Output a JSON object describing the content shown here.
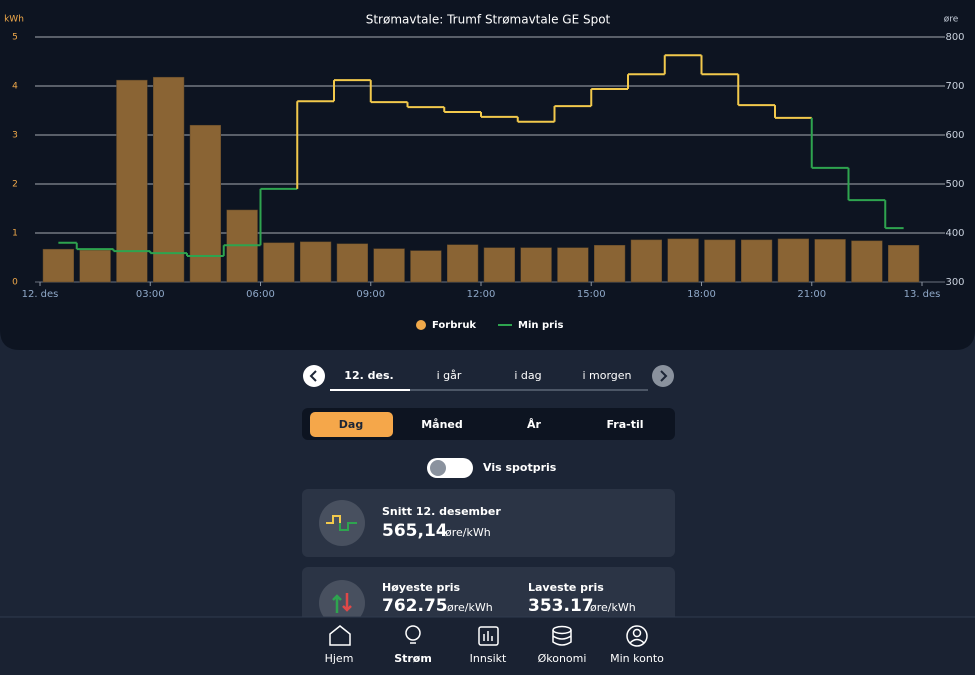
{
  "chart_data": {
    "type": "bar",
    "title": "Strømavtale: Trumf Strømavtale GE Spot",
    "ylabel": "kWh",
    "y2label": "øre",
    "x": [
      0,
      1,
      2,
      3,
      4,
      5,
      6,
      7,
      8,
      9,
      10,
      11,
      12,
      13,
      14,
      15,
      16,
      17,
      18,
      19,
      20,
      21,
      22,
      23
    ],
    "xlim": [
      0,
      24
    ],
    "xticks": [
      {
        "value": 0,
        "label": "12. des"
      },
      {
        "value": 3,
        "label": "03:00"
      },
      {
        "value": 6,
        "label": "06:00"
      },
      {
        "value": 9,
        "label": "09:00"
      },
      {
        "value": 12,
        "label": "12:00"
      },
      {
        "value": 15,
        "label": "15:00"
      },
      {
        "value": 18,
        "label": "18:00"
      },
      {
        "value": 21,
        "label": "21:00"
      },
      {
        "value": 24,
        "label": "13. des"
      }
    ],
    "ylim": [
      0,
      5
    ],
    "yticks": [
      0,
      1,
      2,
      3,
      4,
      5
    ],
    "y2lim": [
      300,
      800
    ],
    "y2ticks": [
      300,
      400,
      500,
      600,
      700,
      800
    ],
    "grid": true,
    "legend": "bottom",
    "series": [
      {
        "name": "Forbruk",
        "type": "bar",
        "color": "#f0a94a",
        "bar_color": "#8a6434",
        "values": [
          0.67,
          0.65,
          4.12,
          4.18,
          3.2,
          1.47,
          0.8,
          0.82,
          0.78,
          0.68,
          0.64,
          0.76,
          0.7,
          0.7,
          0.7,
          0.75,
          0.86,
          0.88,
          0.86,
          0.86,
          0.88,
          0.87,
          0.84,
          0.75
        ]
      },
      {
        "name": "Min pris",
        "type": "line",
        "step": true,
        "axis": "y2",
        "color": "#2ea44f",
        "values": [
          380,
          367,
          363,
          359,
          353.17,
          375,
          490,
          669,
          712,
          667,
          657,
          647,
          637,
          627,
          659,
          694,
          724,
          762.75,
          724,
          661,
          635,
          533,
          467,
          410
        ],
        "colors": [
          "#2ea44f",
          "#2ea44f",
          "#2ea44f",
          "#2ea44f",
          "#2ea44f",
          "#2ea44f",
          "#2ea44f",
          "#f2c94c",
          "#f2c94c",
          "#f2c94c",
          "#f2c94c",
          "#f2c94c",
          "#f2c94c",
          "#f2c94c",
          "#f2c94c",
          "#f2c94c",
          "#f2c94c",
          "#f2c94c",
          "#f2c94c",
          "#f2c94c",
          "#f2c94c",
          "#2ea44f",
          "#2ea44f",
          "#2ea44f"
        ]
      }
    ]
  },
  "date_nav": {
    "tabs": [
      "12. des.",
      "i går",
      "i dag",
      "i morgen"
    ]
  },
  "period_tabs": [
    "Dag",
    "Måned",
    "År",
    "Fra-til"
  ],
  "toggle_label": "Vis spotpris",
  "average_card": {
    "title": "Snitt 12. desember",
    "value": "565,14",
    "unit": "øre/kWh"
  },
  "extremes_card": {
    "high": {
      "title": "Høyeste pris",
      "value": "762.75",
      "unit": "øre/kWh"
    },
    "low": {
      "title": "Laveste pris",
      "value": "353.17",
      "unit": "øre/kWh"
    }
  },
  "nav": [
    "Hjem",
    "Strøm",
    "Innsikt",
    "Økonomi",
    "Min konto"
  ]
}
